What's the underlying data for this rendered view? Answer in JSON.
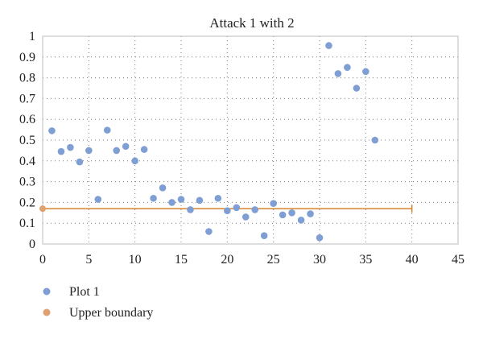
{
  "chart_data": {
    "type": "scatter",
    "title": "Attack 1 with 2",
    "xlabel": "",
    "ylabel": "",
    "xlim": [
      0,
      45
    ],
    "ylim": [
      0,
      1
    ],
    "x_ticks": [
      "0",
      "5",
      "10",
      "15",
      "20",
      "25",
      "30",
      "35",
      "40",
      "45"
    ],
    "y_ticks": [
      "0",
      "0.1",
      "0.2",
      "0.3",
      "0.4",
      "0.5",
      "0.6",
      "0.7",
      "0.8",
      "0.9",
      "1"
    ],
    "grid": "dotted",
    "legend_position": "bottom-left",
    "series": [
      {
        "name": "Plot 1",
        "kind": "scatter",
        "color": "#7f9fd4",
        "points": [
          {
            "x": 1,
            "y": 0.545
          },
          {
            "x": 2,
            "y": 0.445
          },
          {
            "x": 3,
            "y": 0.465
          },
          {
            "x": 4,
            "y": 0.395
          },
          {
            "x": 5,
            "y": 0.45
          },
          {
            "x": 6,
            "y": 0.215
          },
          {
            "x": 7,
            "y": 0.548
          },
          {
            "x": 8,
            "y": 0.45
          },
          {
            "x": 9,
            "y": 0.47
          },
          {
            "x": 10,
            "y": 0.4
          },
          {
            "x": 11,
            "y": 0.455
          },
          {
            "x": 12,
            "y": 0.22
          },
          {
            "x": 13,
            "y": 0.27
          },
          {
            "x": 14,
            "y": 0.2
          },
          {
            "x": 15,
            "y": 0.215
          },
          {
            "x": 16,
            "y": 0.165
          },
          {
            "x": 17,
            "y": 0.21
          },
          {
            "x": 18,
            "y": 0.06
          },
          {
            "x": 19,
            "y": 0.22
          },
          {
            "x": 20,
            "y": 0.16
          },
          {
            "x": 21,
            "y": 0.175
          },
          {
            "x": 22,
            "y": 0.13
          },
          {
            "x": 23,
            "y": 0.165
          },
          {
            "x": 24,
            "y": 0.04
          },
          {
            "x": 25,
            "y": 0.195
          },
          {
            "x": 26,
            "y": 0.14
          },
          {
            "x": 27,
            "y": 0.15
          },
          {
            "x": 28,
            "y": 0.115
          },
          {
            "x": 29,
            "y": 0.145
          },
          {
            "x": 30,
            "y": 0.03
          },
          {
            "x": 31,
            "y": 0.955
          },
          {
            "x": 32,
            "y": 0.82
          },
          {
            "x": 33,
            "y": 0.85
          },
          {
            "x": 34,
            "y": 0.75
          },
          {
            "x": 35,
            "y": 0.83
          },
          {
            "x": 36,
            "y": 0.5
          }
        ]
      },
      {
        "name": "Upper boundary",
        "kind": "line",
        "color": "#d9822b",
        "marker_color": "#e0a070",
        "x": [
          0,
          40
        ],
        "y": [
          0.17,
          0.17
        ]
      }
    ]
  }
}
